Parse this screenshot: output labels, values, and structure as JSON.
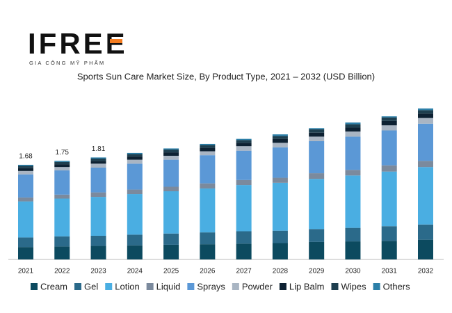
{
  "logo": {
    "text": "IFREE",
    "tagline": "GIA CÔNG MỸ PHẨM"
  },
  "chart_data": {
    "type": "stacked_bar",
    "title": "Sports Sun Care Market Size, By Product Type, 2021 – 2032 (USD Billion)",
    "categories": [
      "2021",
      "2022",
      "2023",
      "2024",
      "2025",
      "2026",
      "2027",
      "2028",
      "2029",
      "2030",
      "2031",
      "2032"
    ],
    "series": [
      {
        "name": "Cream",
        "color": "#0c4a5f",
        "values": [
          0.22,
          0.23,
          0.24,
          0.25,
          0.26,
          0.27,
          0.28,
          0.29,
          0.31,
          0.32,
          0.33,
          0.35
        ]
      },
      {
        "name": "Gel",
        "color": "#2b6a8a",
        "values": [
          0.17,
          0.18,
          0.18,
          0.19,
          0.2,
          0.21,
          0.22,
          0.22,
          0.23,
          0.24,
          0.26,
          0.27
        ]
      },
      {
        "name": "Lotion",
        "color": "#4aaee2",
        "values": [
          0.64,
          0.67,
          0.69,
          0.72,
          0.75,
          0.78,
          0.82,
          0.85,
          0.89,
          0.93,
          0.97,
          1.02
        ]
      },
      {
        "name": "Liquid",
        "color": "#7b8a9d",
        "values": [
          0.07,
          0.07,
          0.08,
          0.08,
          0.08,
          0.09,
          0.09,
          0.09,
          0.1,
          0.1,
          0.11,
          0.11
        ]
      },
      {
        "name": "Sprays",
        "color": "#5b98d6",
        "values": [
          0.41,
          0.43,
          0.44,
          0.46,
          0.48,
          0.5,
          0.52,
          0.54,
          0.57,
          0.59,
          0.62,
          0.66
        ]
      },
      {
        "name": "Powder",
        "color": "#a9b5c3",
        "values": [
          0.06,
          0.06,
          0.07,
          0.07,
          0.07,
          0.07,
          0.08,
          0.08,
          0.08,
          0.09,
          0.09,
          0.1
        ]
      },
      {
        "name": "Lip Balm",
        "color": "#0d2132",
        "values": [
          0.05,
          0.05,
          0.05,
          0.06,
          0.06,
          0.06,
          0.06,
          0.07,
          0.07,
          0.07,
          0.08,
          0.08
        ]
      },
      {
        "name": "Wipes",
        "color": "#1e3f4f",
        "values": [
          0.04,
          0.04,
          0.04,
          0.04,
          0.05,
          0.05,
          0.05,
          0.05,
          0.06,
          0.06,
          0.06,
          0.06
        ]
      },
      {
        "name": "Others",
        "color": "#2c7fa8",
        "values": [
          0.02,
          0.02,
          0.02,
          0.02,
          0.02,
          0.02,
          0.02,
          0.03,
          0.02,
          0.03,
          0.02,
          0.03
        ]
      }
    ],
    "totals": [
      1.68,
      1.75,
      1.81
    ]
  }
}
